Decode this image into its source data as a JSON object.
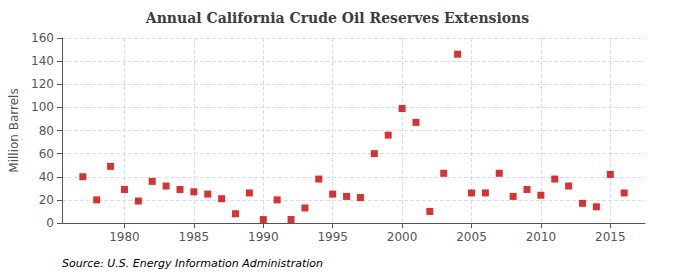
{
  "chart_data": {
    "type": "scatter",
    "title": "Annual California Crude Oil Reserves Extensions",
    "ylabel": "Million Barrels",
    "source": "Source: U.S. Energy Information Administration",
    "x": [
      1977,
      1978,
      1979,
      1980,
      1981,
      1982,
      1983,
      1984,
      1985,
      1986,
      1987,
      1988,
      1989,
      1990,
      1991,
      1992,
      1993,
      1994,
      1995,
      1996,
      1997,
      1998,
      1999,
      2000,
      2001,
      2002,
      2003,
      2004,
      2005,
      2006,
      2007,
      2008,
      2009,
      2010,
      2011,
      2012,
      2013,
      2014,
      2015,
      2016
    ],
    "values": [
      40,
      20,
      49,
      29,
      19,
      36,
      32,
      29,
      27,
      25,
      21,
      8,
      26,
      3,
      20,
      3,
      13,
      38,
      25,
      23,
      22,
      60,
      76,
      99,
      87,
      10,
      43,
      146,
      26,
      26,
      43,
      23,
      29,
      24,
      38,
      32,
      17,
      14,
      42,
      26
    ],
    "color": "#cc0000",
    "marker": "square",
    "xlim": [
      1975.5,
      2017.5
    ],
    "xticks": [
      1980,
      1985,
      1990,
      1995,
      2000,
      2005,
      2010,
      2015
    ],
    "ylim": [
      0,
      160
    ],
    "yticks": [
      0,
      20,
      40,
      60,
      80,
      100,
      120,
      140,
      160
    ],
    "grid": true
  }
}
